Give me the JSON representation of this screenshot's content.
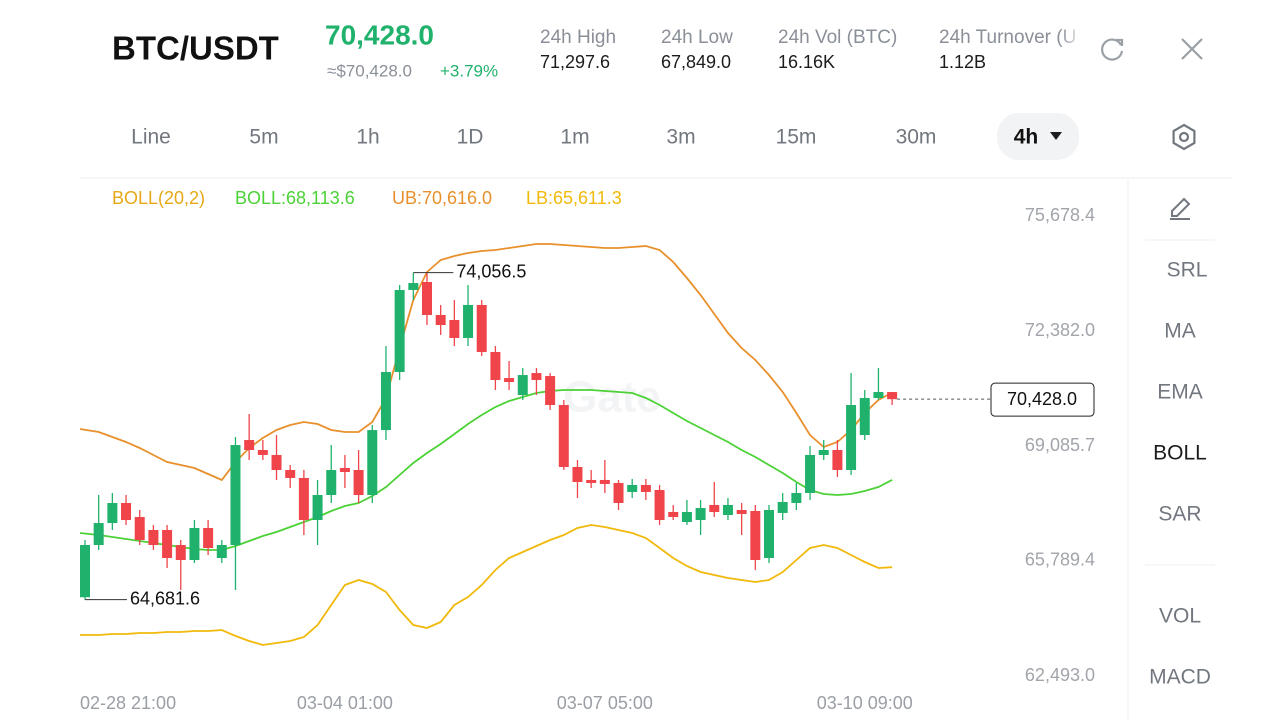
{
  "header": {
    "symbol": "BTC/USDT",
    "price": "70,428.0",
    "approx": "≈$70,428.0",
    "change": "+3.79%",
    "stats": [
      {
        "label": "24h  High",
        "value": "71,297.6"
      },
      {
        "label": "24h  Low",
        "value": "67,849.0"
      },
      {
        "label": "24h  Vol (BTC)",
        "value": "16.16K"
      },
      {
        "label": "24h  Turnover (U",
        "value": "1.12B"
      }
    ]
  },
  "tabs": {
    "items": [
      "Line",
      "5m",
      "1h",
      "1D",
      "1m",
      "3m",
      "15m",
      "30m",
      "4h"
    ],
    "active": 8
  },
  "indicators": {
    "items": [
      "SRL",
      "MA",
      "EMA",
      "BOLL",
      "SAR",
      "VOL",
      "MACD"
    ],
    "active": 3
  },
  "chart_data": {
    "type": "candlestick",
    "indicator": "BOLL(20,2)",
    "indicator_color": "#e6a817",
    "up_color": "#20b26c",
    "down_color": "#ef454a",
    "categories": [
      "02-28 21:00",
      null,
      null,
      null,
      null,
      null,
      null,
      null,
      null,
      null,
      null,
      null,
      null,
      null,
      null,
      null,
      null,
      null,
      null,
      "03-04 01:00",
      null,
      null,
      null,
      null,
      null,
      null,
      null,
      null,
      null,
      null,
      null,
      null,
      null,
      null,
      null,
      null,
      null,
      null,
      "03-07 05:00",
      null,
      null,
      null,
      null,
      null,
      null,
      null,
      null,
      null,
      null,
      null,
      null,
      null,
      null,
      null,
      null,
      null,
      null,
      "03-10 09:00",
      null,
      null
    ],
    "open": [
      64750,
      66248,
      66878,
      67452,
      67051,
      66678,
      66678,
      66248,
      65818,
      66735,
      65875,
      66248,
      69257,
      68971,
      68828,
      68398,
      68169,
      66965,
      67681,
      68455,
      68398,
      67681,
      69543,
      71206,
      73558,
      73787,
      72841,
      72697,
      72182,
      73128,
      71780,
      71034,
      70548,
      71177,
      71091,
      70261,
      68484,
      68112,
      68112,
      68026,
      67768,
      67968,
      67825,
      67194,
      66907,
      66965,
      67395,
      67108,
      67251,
      67223,
      65875,
      67166,
      67452,
      67739,
      68828,
      68971,
      68398,
      69400,
      70461,
      70633
    ],
    "high": [
      66391,
      67681,
      67739,
      67681,
      67251,
      66821,
      66821,
      66391,
      66965,
      66965,
      66391,
      69344,
      70002,
      69257,
      69400,
      68541,
      68398,
      68112,
      69114,
      68828,
      68971,
      69687,
      71951,
      73701,
      74056.5,
      74044,
      73128,
      73271,
      73701,
      73271,
      71951,
      71521,
      71321,
      71321,
      71177,
      70404,
      68685,
      68398,
      68684,
      68112,
      68141,
      68141,
      67968,
      67395,
      67538,
      67538,
      68054,
      67595,
      67452,
      67395,
      67395,
      67739,
      68026,
      69085,
      69257,
      69257,
      71177,
      70691,
      71321,
      70633
    ],
    "low": [
      64681.6,
      66104,
      66678,
      66821,
      66248,
      66104,
      65588,
      64958,
      65732,
      65961,
      65732,
      64958,
      68685,
      68685,
      68112,
      67882,
      66535,
      66248,
      67452,
      67882,
      67452,
      67452,
      69257,
      70978,
      73271,
      72554,
      72268,
      71951,
      71951,
      71665,
      70691,
      70691,
      70404,
      70548,
      70118,
      68398,
      67595,
      67882,
      67739,
      67251,
      67595,
      67538,
      66821,
      66965,
      66821,
      66535,
      67051,
      66965,
      66535,
      65531,
      65732,
      66965,
      67251,
      67538,
      68685,
      68198,
      68255,
      69257,
      70404,
      70261
    ],
    "close": [
      66248,
      66878,
      67452,
      66965,
      66391,
      66248,
      65875,
      65818,
      66735,
      66162,
      66248,
      69114,
      68971,
      68828,
      68398,
      68169,
      66965,
      67681,
      68398,
      68341,
      67681,
      69543,
      71206,
      73558,
      73758,
      72841,
      72554,
      72182,
      73128,
      71780,
      70978,
      70920,
      71120,
      70977,
      70261,
      68484,
      68054,
      68026,
      67997,
      67452,
      67968,
      67768,
      66965,
      67051,
      67194,
      67309,
      67194,
      67395,
      67137,
      65818,
      67251,
      67481,
      67739,
      68828,
      68971,
      68398,
      70261,
      70461,
      70633,
      70428.0
    ],
    "series": [
      {
        "label": "BOLL:68,113.6",
        "color": "#4cd137",
        "values": [
          66592,
          66535,
          66477,
          66420,
          66363,
          66305,
          66248,
          66191,
          66133,
          66105,
          66105,
          66219,
          66363,
          66506,
          66621,
          66764,
          66907,
          67051,
          67223,
          67366,
          67452,
          67653,
          67910,
          68254,
          68598,
          68885,
          69143,
          69430,
          69716,
          69974,
          70204,
          70376,
          70490,
          70605,
          70662,
          70691,
          70691,
          70691,
          70662,
          70633,
          70605,
          70461,
          70261,
          70032,
          69802,
          69602,
          69401,
          69200,
          68971,
          68770,
          68541,
          68312,
          68054,
          67824,
          67710,
          67681,
          67710,
          67796,
          67910,
          68113.6
        ]
      },
      {
        "label": "UB:70,616.0",
        "color": "#e8902c",
        "values": [
          69573,
          69487,
          69344,
          69200,
          69028,
          68828,
          68627,
          68541,
          68455,
          68283,
          68111,
          68627,
          69028,
          69315,
          69544,
          69688,
          69774,
          69716,
          69544,
          69487,
          69487,
          69774,
          70461,
          71895,
          73271,
          74073,
          74417,
          74532,
          74618,
          74675,
          74704,
          74761,
          74818,
          74876,
          74876,
          74847,
          74818,
          74790,
          74761,
          74761,
          74790,
          74818,
          74704,
          74360,
          73901,
          73414,
          72869,
          72325,
          71895,
          71551,
          71121,
          70633,
          70032,
          69401,
          69057,
          69200,
          69544,
          70032,
          70404,
          70616.0
        ]
      },
      {
        "label": "LB:65,611.3",
        "color": "#f0b90b",
        "values": [
          63668,
          63668,
          63697,
          63697,
          63726,
          63726,
          63754,
          63754,
          63783,
          63783,
          63812,
          63640,
          63496,
          63382,
          63439,
          63496,
          63611,
          63955,
          64528,
          65101,
          65245,
          65130,
          64901,
          64385,
          63955,
          63869,
          64041,
          64528,
          64757,
          65101,
          65531,
          65875,
          66047,
          66219,
          66391,
          66535,
          66735,
          66821,
          66764,
          66678,
          66592,
          66449,
          66162,
          65875,
          65646,
          65474,
          65388,
          65302,
          65245,
          65187,
          65245,
          65474,
          65818,
          66162,
          66248,
          66162,
          65961,
          65761,
          65589,
          65611.3
        ]
      }
    ],
    "ylim": [
      62493.0,
      75678.4
    ],
    "yticks": [
      {
        "value": 75678.4,
        "label": "75,678.4"
      },
      {
        "value": 72382.0,
        "label": "72,382.0"
      },
      {
        "value": 69085.7,
        "label": "69,085.7"
      },
      {
        "value": 65789.4,
        "label": "65,789.4"
      },
      {
        "value": 62493.0,
        "label": "62,493.0"
      }
    ],
    "high_label": "74,056.5",
    "low_label": "64,681.6",
    "last_label": "70,428.0"
  }
}
